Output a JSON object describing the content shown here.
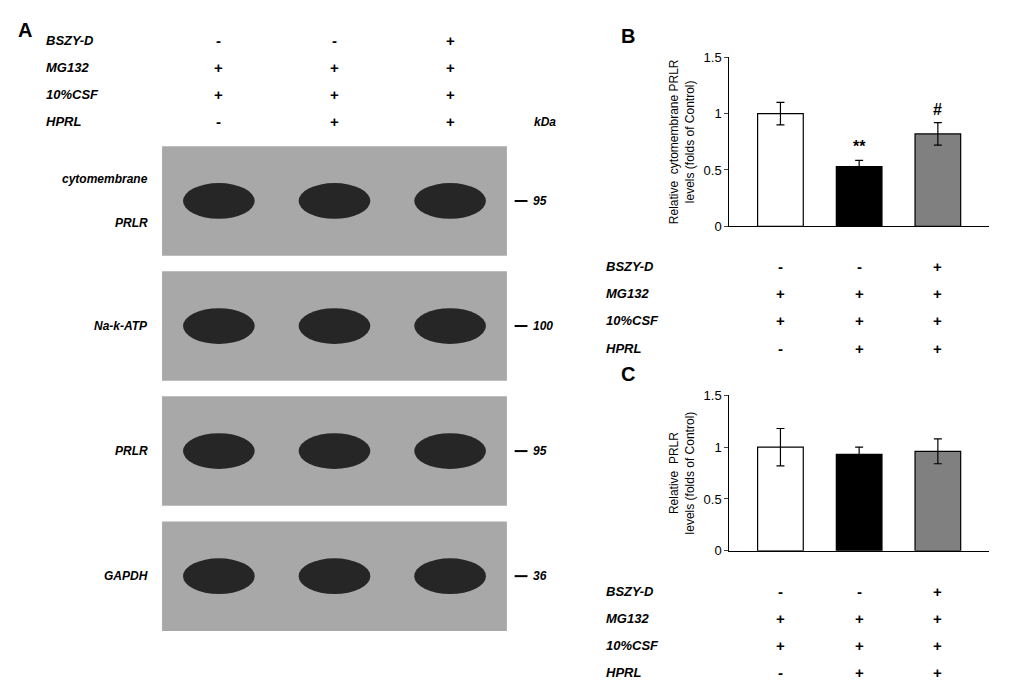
{
  "chart_data": [
    {
      "type": "blot",
      "title": "A",
      "table": {
        "rows": [
          "BSZY-D",
          "MG132",
          "10%CSF",
          "HPRL"
        ],
        "columns": [
          [
            "-",
            "+",
            "+",
            "-"
          ],
          [
            "-",
            "+",
            "+",
            "+"
          ],
          [
            "+",
            "+",
            "+",
            "+"
          ]
        ],
        "header": "kDa"
      },
      "bands": [
        {
          "labels": [
            "cytomembrane",
            "PRLR"
          ],
          "kda": 95
        },
        {
          "labels": [
            "Na-k-ATP"
          ],
          "kda": 100
        },
        {
          "labels": [
            "PRLR"
          ],
          "kda": 95
        },
        {
          "labels": [
            "GAPDH"
          ],
          "kda": 36
        }
      ]
    },
    {
      "type": "bar",
      "title": "B",
      "ylabel": "Relative  cytomembrane PRLR\nlevels (folds of Control)",
      "categories": [
        null,
        null,
        null
      ],
      "values": [
        1.0,
        0.53,
        0.82
      ],
      "errors": [
        0.1,
        0.055,
        0.1
      ],
      "colors": [
        "white",
        "black",
        "#808080"
      ],
      "edgecolor": "black",
      "ylim": [
        0.0,
        1.5
      ],
      "yticks": [
        0.0,
        0.5,
        1.0,
        1.5
      ],
      "grid": false,
      "tick_labels": "y",
      "annotations": [
        {
          "category": 1,
          "text": "**"
        },
        {
          "category": 2,
          "text": "#"
        }
      ],
      "table": {
        "rows": [
          "BSZY-D",
          "MG132",
          "10%CSF",
          "HPRL"
        ],
        "columns": [
          [
            "-",
            "+",
            "+",
            "-"
          ],
          [
            "-",
            "+",
            "+",
            "+"
          ],
          [
            "+",
            "+",
            "+",
            "+"
          ]
        ]
      }
    },
    {
      "type": "bar",
      "title": "C",
      "ylabel": "Relative  PRLR\nlevels (folds of Control)",
      "categories": [
        null,
        null,
        null
      ],
      "values": [
        1.0,
        0.93,
        0.96
      ],
      "errors": [
        0.18,
        0.07,
        0.12
      ],
      "colors": [
        "white",
        "black",
        "#808080"
      ],
      "edgecolor": "black",
      "ylim": [
        0.0,
        1.5
      ],
      "yticks": [
        0.0,
        0.5,
        1.0,
        1.5
      ],
      "grid": false,
      "tick_labels": "y",
      "annotations": [],
      "table": {
        "rows": [
          "BSZY-D",
          "MG132",
          "10%CSF",
          "HPRL"
        ],
        "columns": [
          [
            "-",
            "+",
            "+",
            "-"
          ],
          [
            "-",
            "+",
            "+",
            "+"
          ],
          [
            "+",
            "+",
            "+",
            "+"
          ]
        ]
      }
    }
  ]
}
